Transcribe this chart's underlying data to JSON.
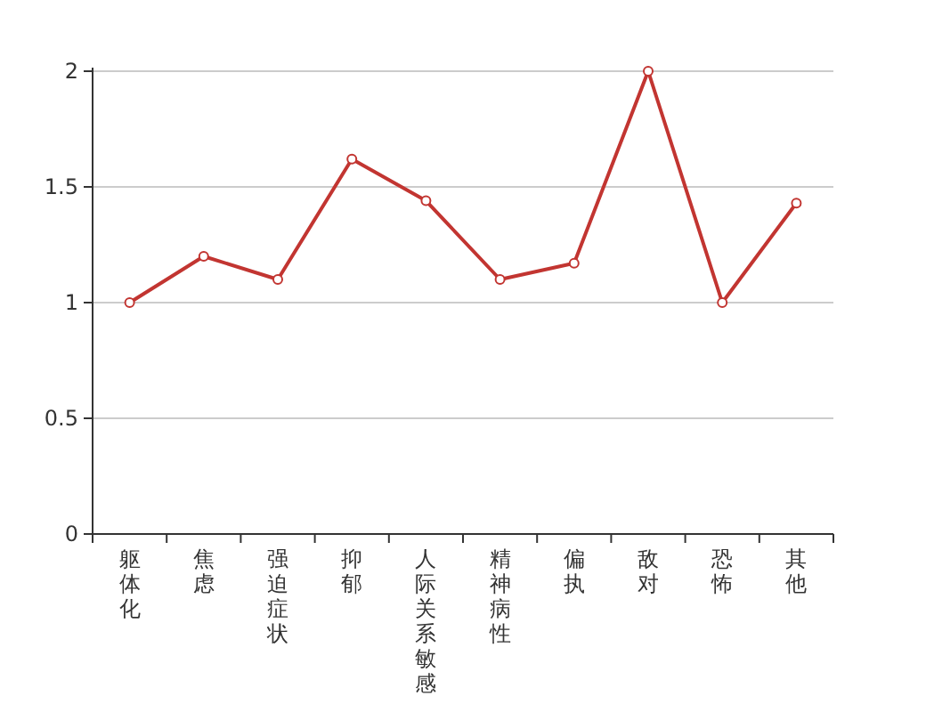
{
  "chart_data": {
    "type": "line",
    "categories": [
      "躯体化",
      "焦虑",
      "强迫症状",
      "抑郁",
      "人际关系敏感",
      "精神病性",
      "偏执",
      "敌对",
      "恐怖",
      "其他"
    ],
    "series": [
      {
        "color": "#c23531",
        "values": [
          1.0,
          1.2,
          1.1,
          1.62,
          1.44,
          1.1,
          1.17,
          2.0,
          1.0,
          1.43
        ]
      }
    ],
    "ylim": [
      0,
      2
    ],
    "yticks": [
      0,
      0.5,
      1,
      1.5,
      2
    ],
    "grid": "y",
    "marker": "circle",
    "line_style": "solid"
  }
}
